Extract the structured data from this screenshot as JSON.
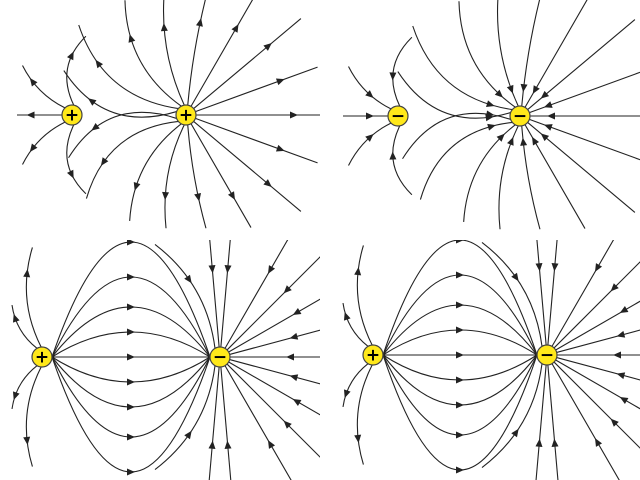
{
  "panels": [
    {
      "charges": [
        {
          "label": "+"
        },
        {
          "label": "+"
        }
      ]
    },
    {
      "charges": [
        {
          "label": "−"
        },
        {
          "label": "−"
        }
      ]
    },
    {
      "charges": [
        {
          "label": "+"
        },
        {
          "label": "−"
        }
      ]
    },
    {
      "charges": [
        {
          "label": "+"
        },
        {
          "label": "−"
        }
      ]
    }
  ]
}
